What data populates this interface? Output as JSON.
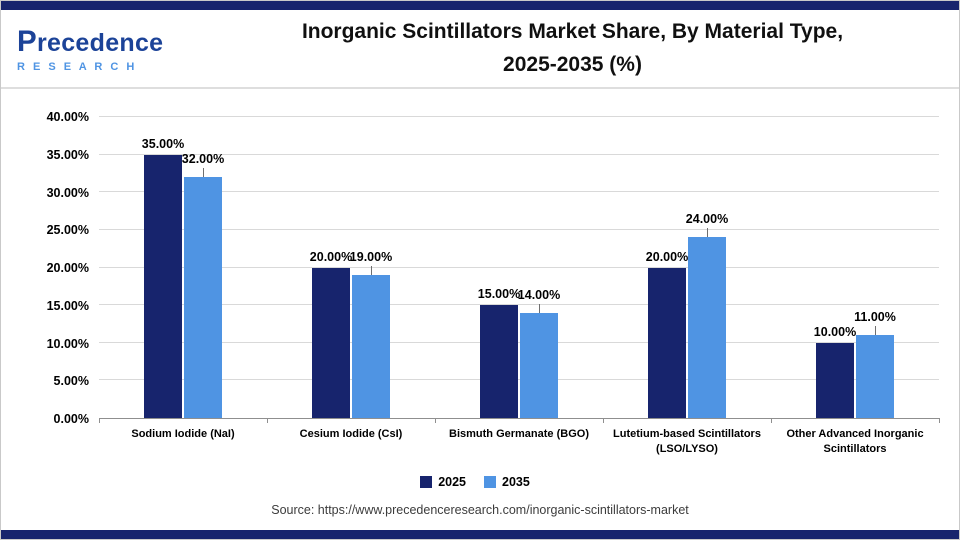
{
  "header": {
    "logo_line1": "Precedence",
    "logo_line2": "R E S E A R C H",
    "title_line1": "Inorganic Scintillators Market Share, By Material Type,",
    "title_line2": "2025-2035 (%)"
  },
  "chart_data": {
    "type": "bar",
    "title": "Inorganic Scintillators Market Share, By Material Type, 2025-2035 (%)",
    "categories": [
      "Sodium Iodide (NaI)",
      "Cesium Iodide (CsI)",
      "Bismuth Germanate (BGO)",
      "Lutetium-based Scintillators (LSO/LYSO)",
      "Other Advanced Inorganic Scintillators"
    ],
    "series": [
      {
        "name": "2025",
        "color": "#17246d",
        "values": [
          35,
          20,
          15,
          20,
          10
        ]
      },
      {
        "name": "2035",
        "color": "#4f94e3",
        "values": [
          32,
          19,
          14,
          24,
          11
        ]
      }
    ],
    "ylim": [
      0,
      40
    ],
    "ytick_step": 5,
    "value_suffix": "%",
    "grid": "horizontal",
    "legend_position": "bottom"
  },
  "footer": {
    "source": "Source: https://www.precedenceresearch.com/inorganic-scintillators-market"
  },
  "colors": {
    "accent_navy": "#17246d",
    "accent_light_blue": "#4f94e3",
    "logo_blue": "#1c4398"
  }
}
